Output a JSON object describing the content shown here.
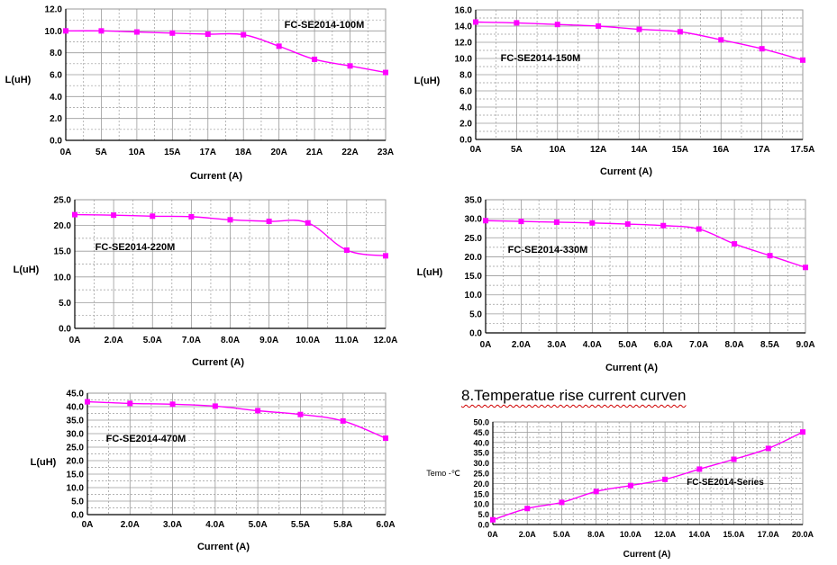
{
  "heading": "8.Temperatue rise current curven",
  "colors": {
    "series": "#ff00ff",
    "grid": "#9a9a9a",
    "axis": "#000000"
  },
  "chart_data": [
    {
      "type": "line",
      "title": "FC-SE2014-100M",
      "xlabel": "Current (A)",
      "ylabel": "L(uH)",
      "categories": [
        "0A",
        "5A",
        "10A",
        "15A",
        "17A",
        "18A",
        "20A",
        "21A",
        "22A",
        "23A"
      ],
      "values": [
        10.0,
        10.0,
        9.9,
        9.8,
        9.7,
        9.65,
        8.6,
        7.4,
        6.8,
        6.2
      ],
      "ylim": [
        0,
        12
      ],
      "yticks": [
        "0.0",
        "2.0",
        "4.0",
        "6.0",
        "8.0",
        "10.0",
        "12.0"
      ],
      "grid": true
    },
    {
      "type": "line",
      "title": "FC-SE2014-150M",
      "xlabel": "Current (A)",
      "ylabel": "L(uH)",
      "categories": [
        "0A",
        "5A",
        "10A",
        "12A",
        "14A",
        "15A",
        "16A",
        "17A",
        "17.5A"
      ],
      "values": [
        14.5,
        14.4,
        14.2,
        14.0,
        13.6,
        13.3,
        12.3,
        11.2,
        9.8
      ],
      "ylim": [
        0,
        16
      ],
      "yticks": [
        "0.0",
        "2.0",
        "4.0",
        "6.0",
        "8.0",
        "10.0",
        "12.0",
        "14.0",
        "16.0"
      ],
      "grid": true
    },
    {
      "type": "line",
      "title": "FC-SE2014-220M",
      "xlabel": "Current (A)",
      "ylabel": "L(uH)",
      "categories": [
        "0A",
        "2.0A",
        "5.0A",
        "7.0A",
        "8.0A",
        "9.0A",
        "10.0A",
        "11.0A",
        "12.0A"
      ],
      "values": [
        22.1,
        22.0,
        21.8,
        21.7,
        21.1,
        20.8,
        20.5,
        15.2,
        14.1
      ],
      "ylim": [
        0,
        25
      ],
      "yticks": [
        "0.0",
        "5.0",
        "10.0",
        "15.0",
        "20.0",
        "25.0"
      ],
      "grid": true
    },
    {
      "type": "line",
      "title": "FC-SE2014-330M",
      "xlabel": "Current (A)",
      "ylabel": "L(uH)",
      "categories": [
        "0A",
        "2.0A",
        "3.0A",
        "4.0A",
        "5.0A",
        "6.0A",
        "7.0A",
        "8.0A",
        "8.5A",
        "9.0A"
      ],
      "values": [
        29.5,
        29.3,
        29.1,
        28.9,
        28.6,
        28.2,
        27.3,
        23.4,
        20.3,
        17.2
      ],
      "ylim": [
        0,
        35
      ],
      "yticks": [
        "0.0",
        "5.0",
        "10.0",
        "15.0",
        "20.0",
        "25.0",
        "30.0",
        "35.0"
      ],
      "grid": true
    },
    {
      "type": "line",
      "title": "FC-SE2014-470M",
      "xlabel": "Current (A)",
      "ylabel": "L(uH)",
      "categories": [
        "0A",
        "2.0A",
        "3.0A",
        "4.0A",
        "5.0A",
        "5.5A",
        "5.8A",
        "6.0A"
      ],
      "values": [
        41.8,
        41.2,
        40.9,
        40.2,
        38.5,
        37.1,
        34.7,
        28.3
      ],
      "ylim": [
        0,
        45
      ],
      "yticks": [
        "0.0",
        "5.0",
        "10.0",
        "15.0",
        "20.0",
        "25.0",
        "30.0",
        "35.0",
        "40.0",
        "45.0"
      ],
      "grid": true
    },
    {
      "type": "line",
      "title": "FC-SE2014-Series",
      "xlabel": "Current (A)",
      "ylabel": "Temo -℃",
      "categories": [
        "0A",
        "2.0A",
        "5.0A",
        "8.0A",
        "10.0A",
        "12.0A",
        "14.0A",
        "15.0A",
        "17.0A",
        "20.0A"
      ],
      "values": [
        2.3,
        7.8,
        10.8,
        16.1,
        19.0,
        22.0,
        27.0,
        31.8,
        37.1,
        45.1
      ],
      "ylim": [
        0,
        50
      ],
      "yticks": [
        "0.0",
        "5.0",
        "10.0",
        "15.0",
        "20.0",
        "25.0",
        "30.0",
        "35.0",
        "40.0",
        "45.0",
        "50.0"
      ],
      "grid": true
    }
  ]
}
